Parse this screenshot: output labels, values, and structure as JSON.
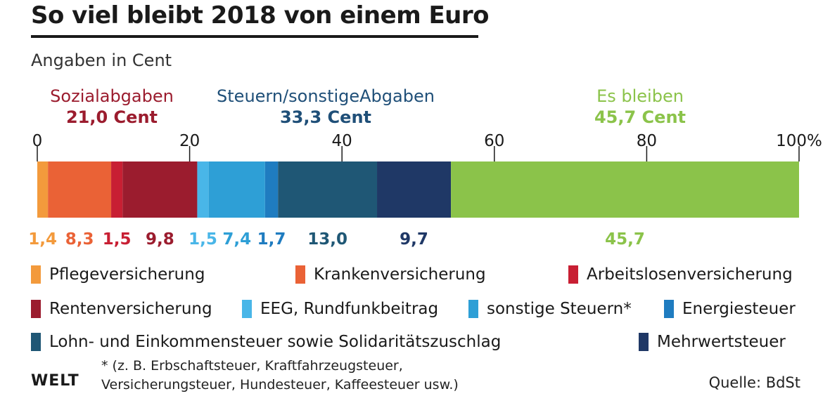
{
  "header": {
    "title": "So viel bleibt 2018 von einem Euro",
    "subtitle": "Angaben in Cent"
  },
  "groups": [
    {
      "name": "Sozialabgaben",
      "value": "21,0 Cent",
      "color": "#9b1c2e"
    },
    {
      "name": "Steuern/sonstigeAbgaben",
      "value": "33,3 Cent",
      "color": "#1f4f78"
    },
    {
      "name": "Es bleiben",
      "value": "45,7 Cent",
      "color": "#8bc34a"
    }
  ],
  "chart_data": {
    "type": "bar",
    "orientation": "horizontal-stacked",
    "xlim": [
      0,
      100
    ],
    "ticks": [
      {
        "value": 0,
        "label": "0"
      },
      {
        "value": 20,
        "label": "20"
      },
      {
        "value": 40,
        "label": "40"
      },
      {
        "value": 60,
        "label": "60"
      },
      {
        "value": 80,
        "label": "80"
      },
      {
        "value": 100,
        "label": "100%"
      }
    ],
    "series": [
      {
        "name": "Pflegeversicherung",
        "value": 1.4,
        "label": "1,4",
        "color": "#f39a3c",
        "label_color": "#f39a3c"
      },
      {
        "name": "Krankenversicherung",
        "value": 8.3,
        "label": "8,3",
        "color": "#ea6236",
        "label_color": "#ea6236"
      },
      {
        "name": "Arbeitslosenversicherung",
        "value": 1.5,
        "label": "1,5",
        "color": "#c81f33",
        "label_color": "#c81f33"
      },
      {
        "name": "Rentenversicherung",
        "value": 9.8,
        "label": "9,8",
        "color": "#9b1c2e",
        "label_color": "#9b1c2e"
      },
      {
        "name": "EEG, Rundfunkbeitrag",
        "value": 1.5,
        "label": "1,5",
        "color": "#49b6e8",
        "label_color": "#49b6e8"
      },
      {
        "name": "sonstige Steuern*",
        "value": 7.4,
        "label": "7,4",
        "color": "#2e9fd6",
        "label_color": "#2e9fd6"
      },
      {
        "name": "Energiesteuer",
        "value": 1.7,
        "label": "1,7",
        "color": "#1f7cc0",
        "label_color": "#1f7cc0"
      },
      {
        "name": "Lohn- und Einkommensteuer sowie Solidaritätszuschlag",
        "value": 13.0,
        "label": "13,0",
        "color": "#1f5775",
        "label_color": "#1f5775"
      },
      {
        "name": "Mehrwertsteuer",
        "value": 9.7,
        "label": "9,7",
        "color": "#1f3866",
        "label_color": "#1f3866"
      },
      {
        "name": "Es bleiben",
        "value": 45.7,
        "label": "45,7",
        "color": "#8bc34a",
        "label_color": "#8bc34a"
      }
    ]
  },
  "legend": [
    {
      "label": "Pflegeversicherung",
      "color": "#f39a3c"
    },
    {
      "label": "Krankenversicherung",
      "color": "#ea6236"
    },
    {
      "label": "Arbeitslosenversicherung",
      "color": "#c81f33"
    },
    {
      "label": "Rentenversicherung",
      "color": "#9b1c2e"
    },
    {
      "label": "EEG, Rundfunkbeitrag",
      "color": "#49b6e8"
    },
    {
      "label": "sonstige Steuern*",
      "color": "#2e9fd6"
    },
    {
      "label": "Energiesteuer",
      "color": "#1f7cc0"
    },
    {
      "label": "Lohn- und Einkommensteuer sowie Solidaritätszuschlag",
      "color": "#1f5775"
    },
    {
      "label": "Mehrwertsteuer",
      "color": "#1f3866"
    }
  ],
  "footer": {
    "footnote": "* (z. B. Erbschaftsteuer, Kraftfahrzeugsteuer,\nVersicherungsteuer, Hundesteuer, Kaffeesteuer usw.)",
    "logo": "WELT",
    "source": "Quelle: BdSt"
  }
}
